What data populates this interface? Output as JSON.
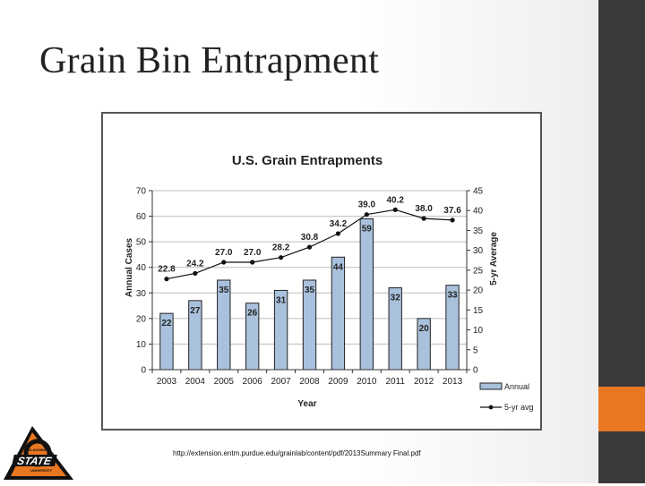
{
  "slide": {
    "title": "Grain Bin Entrapment",
    "source_url": "http://extension.entm.purdue.edu/grainlab/content/pdf/2013Summary Final.pdf",
    "logo": {
      "top_text": "OKLAHOMA",
      "main_text": "STATE",
      "bottom_text": "UNIVERSITY"
    }
  },
  "colors": {
    "bar_fill": "#a9c1dc",
    "bar_stroke": "#222222",
    "line": "#111111",
    "accent": "#e87722",
    "dark_bar": "#3a3a3a"
  },
  "chart_data": {
    "type": "bar",
    "title": "U.S. Grain Entrapments",
    "xlabel": "Year",
    "ylabel": "Annual Cases",
    "y2label": "5-yr Average",
    "ylim": [
      0,
      70
    ],
    "y2lim": [
      0,
      45
    ],
    "yticks": [
      "0",
      "10",
      "20",
      "30",
      "40",
      "50",
      "60",
      "70"
    ],
    "y2ticks": [
      "0",
      "5",
      "10",
      "15",
      "20",
      "25",
      "30",
      "35",
      "40",
      "45"
    ],
    "categories": [
      "2003",
      "2004",
      "2005",
      "2006",
      "2007",
      "2008",
      "2009",
      "2010",
      "2011",
      "2012",
      "2013"
    ],
    "grid": true,
    "legend_position": "bottom-right",
    "series": [
      {
        "name": "Annual",
        "type": "bar",
        "axis": "left",
        "values": [
          22,
          27,
          35,
          26,
          31,
          35,
          44,
          59,
          32,
          20,
          33
        ],
        "labels": [
          "22",
          "27",
          "35",
          "26",
          "31",
          "35",
          "44",
          "59",
          "32",
          "20",
          "33"
        ]
      },
      {
        "name": "5-yr avg",
        "type": "line",
        "axis": "right",
        "values": [
          22.8,
          24.2,
          27.0,
          27.0,
          28.2,
          30.8,
          34.2,
          39.0,
          40.2,
          38.0,
          37.6
        ],
        "labels": [
          "22.8",
          "24.2",
          "27.0",
          "27.0",
          "28.2",
          "30.8",
          "34.2",
          "39.0",
          "40.2",
          "38.0",
          "37.6"
        ]
      }
    ]
  }
}
